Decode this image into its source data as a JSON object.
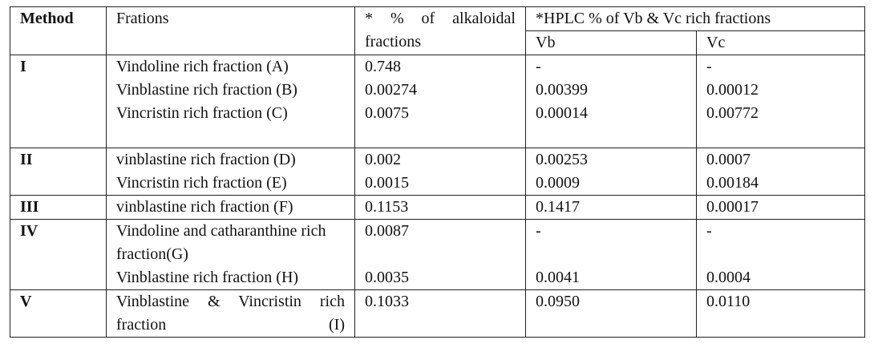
{
  "header": {
    "method": "Method",
    "fractions": "Frations",
    "alkaloidal": "* % of alkaloidal fractions",
    "hplc": "*HPLC % of Vb & Vc rich fractions",
    "vb": "Vb",
    "vc": "Vc"
  },
  "groups": [
    {
      "method": "I",
      "items": [
        {
          "fraction": "Vindoline rich fraction (A)",
          "alkaloidal": "0.748",
          "vb": "-",
          "vc": "-"
        },
        {
          "fraction": "Vinblastine rich fraction (B)",
          "alkaloidal": "0.00274",
          "vb": "0.00399",
          "vc": "0.00012"
        },
        {
          "fraction": "Vincristin rich fraction (C)",
          "alkaloidal": "0.0075",
          "vb": "0.00014",
          "vc": "0.00772"
        }
      ]
    },
    {
      "method": "II",
      "items": [
        {
          "fraction": "vinblastine rich fraction (D)",
          "alkaloidal": "0.002",
          "vb": "0.00253",
          "vc": "0.0007"
        },
        {
          "fraction": "Vincristin rich fraction (E)",
          "alkaloidal": "0.0015",
          "vb": "0.0009",
          "vc": "0.00184"
        }
      ]
    },
    {
      "method": "III",
      "items": [
        {
          "fraction": "vinblastine rich fraction (F)",
          "alkaloidal": "0.1153",
          "vb": "0.1417",
          "vc": "0.00017"
        }
      ]
    },
    {
      "method": "IV",
      "items": [
        {
          "fraction": "Vindoline and catharanthine rich fraction(G)",
          "alkaloidal": "0.0087",
          "vb": "-",
          "vc": "-"
        },
        {
          "fraction": "Vinblastine rich fraction (H)",
          "alkaloidal": "0.0035",
          "vb": "0.0041",
          "vc": "0.0004"
        }
      ]
    },
    {
      "method": "V",
      "items": [
        {
          "fraction": "Vinblastine & Vincristin rich fraction (I)",
          "alkaloidal": "0.1033",
          "vb": "0.0950",
          "vc": "0.0110"
        }
      ]
    }
  ]
}
